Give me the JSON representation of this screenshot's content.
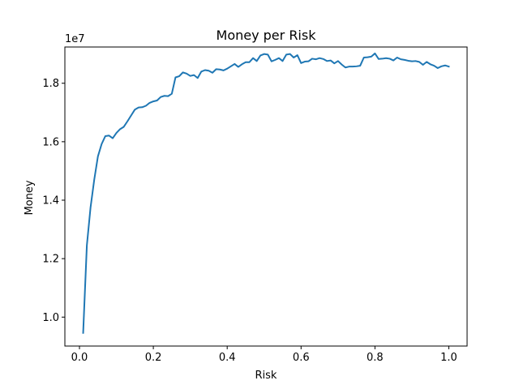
{
  "chart_data": {
    "type": "line",
    "title": "Money per Risk",
    "xlabel": "Risk",
    "ylabel": "Money",
    "y_multiplier_label": "1e7",
    "xlim": [
      -0.0395,
      1.0495
    ],
    "ylim": [
      9.01,
      19.24
    ],
    "x_ticks": [
      0.0,
      0.2,
      0.4,
      0.6,
      0.8,
      1.0
    ],
    "x_tick_labels": [
      "0.0",
      "0.2",
      "0.4",
      "0.6",
      "0.8",
      "1.0"
    ],
    "y_ticks": [
      10,
      12,
      14,
      16,
      18
    ],
    "y_tick_labels": [
      "1.0",
      "1.2",
      "1.4",
      "1.6",
      "1.8"
    ],
    "grid": false,
    "legend": "none",
    "series": [
      {
        "color": "#1f77b4",
        "x": [
          0.01,
          0.02,
          0.03,
          0.04,
          0.05,
          0.06,
          0.07,
          0.08,
          0.09,
          0.1,
          0.11,
          0.12,
          0.13,
          0.14,
          0.15,
          0.16,
          0.17,
          0.18,
          0.19,
          0.2,
          0.21,
          0.22,
          0.23,
          0.24,
          0.25,
          0.26,
          0.27,
          0.28,
          0.29,
          0.3,
          0.31,
          0.32,
          0.33,
          0.34,
          0.35,
          0.36,
          0.37,
          0.38,
          0.39,
          0.4,
          0.41,
          0.42,
          0.43,
          0.44,
          0.45,
          0.46,
          0.47,
          0.48,
          0.49,
          0.5,
          0.51,
          0.52,
          0.53,
          0.54,
          0.55,
          0.56,
          0.57,
          0.58,
          0.59,
          0.6,
          0.61,
          0.62,
          0.63,
          0.64,
          0.65,
          0.66,
          0.67,
          0.68,
          0.69,
          0.7,
          0.71,
          0.72,
          0.73,
          0.74,
          0.75,
          0.76,
          0.77,
          0.78,
          0.79,
          0.8,
          0.81,
          0.82,
          0.83,
          0.84,
          0.85,
          0.86,
          0.87,
          0.88,
          0.89,
          0.9,
          0.91,
          0.92,
          0.93,
          0.94,
          0.95,
          0.96,
          0.97,
          0.98,
          0.99,
          1.0
        ],
        "values": [
          9.46,
          12.45,
          13.75,
          14.7,
          15.5,
          15.92,
          16.19,
          16.21,
          16.12,
          16.3,
          16.43,
          16.51,
          16.7,
          16.9,
          17.1,
          17.17,
          17.18,
          17.23,
          17.33,
          17.38,
          17.41,
          17.53,
          17.57,
          17.56,
          17.64,
          18.2,
          18.24,
          18.37,
          18.33,
          18.25,
          18.28,
          18.18,
          18.4,
          18.45,
          18.43,
          18.36,
          18.48,
          18.47,
          18.44,
          18.5,
          18.58,
          18.66,
          18.56,
          18.65,
          18.72,
          18.72,
          18.86,
          18.76,
          18.95,
          19.0,
          18.98,
          18.75,
          18.8,
          18.86,
          18.76,
          18.98,
          19.0,
          18.88,
          18.96,
          18.69,
          18.74,
          18.75,
          18.84,
          18.82,
          18.86,
          18.83,
          18.76,
          18.78,
          18.68,
          18.76,
          18.64,
          18.54,
          18.57,
          18.57,
          18.58,
          18.6,
          18.88,
          18.89,
          18.91,
          19.02,
          18.83,
          18.84,
          18.86,
          18.84,
          18.78,
          18.88,
          18.82,
          18.8,
          18.77,
          18.75,
          18.76,
          18.73,
          18.63,
          18.73,
          18.65,
          18.6,
          18.52,
          18.58,
          18.61,
          18.57
        ]
      }
    ]
  }
}
